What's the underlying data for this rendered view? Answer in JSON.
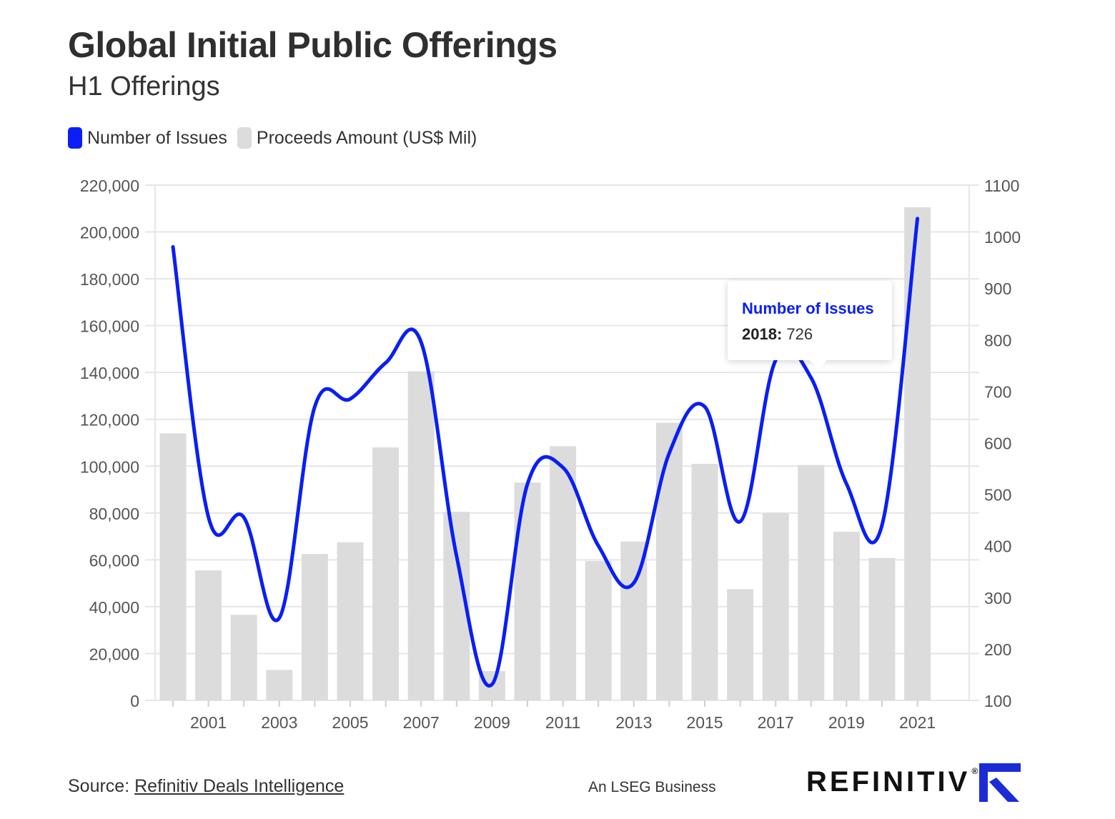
{
  "header": {
    "title": "Global Initial Public Offerings",
    "subtitle": "H1 Offerings"
  },
  "colors": {
    "line": "#0a1ef5",
    "bar": "#dcdcdc",
    "grid": "#e6e6e6",
    "axis_text": "#555555"
  },
  "chart_data": {
    "type": "bar+line",
    "title": "Global Initial Public Offerings",
    "subtitle": "H1 Offerings",
    "legend": [
      "Number of Issues",
      "Proceeds Amount (US$ Mil)"
    ],
    "legend_position": "top-left",
    "x": [
      2000,
      2001,
      2002,
      2003,
      2004,
      2005,
      2006,
      2007,
      2008,
      2009,
      2010,
      2011,
      2012,
      2013,
      2014,
      2015,
      2016,
      2017,
      2018,
      2019,
      2020,
      2021
    ],
    "x_tick_labels": [
      "2001",
      "2003",
      "2005",
      "2007",
      "2009",
      "2011",
      "2013",
      "2015",
      "2017",
      "2019",
      "2021"
    ],
    "series": [
      {
        "name": "Proceeds Amount (US$ Mil)",
        "type": "bar",
        "axis": "left",
        "values": [
          114000,
          55500,
          36500,
          13000,
          62500,
          67500,
          108000,
          140500,
          80500,
          12500,
          93000,
          108500,
          59500,
          67800,
          118500,
          101000,
          47500,
          80000,
          100500,
          72000,
          60800,
          210500
        ]
      },
      {
        "name": "Number of Issues",
        "type": "line",
        "axis": "right",
        "values": [
          980,
          456,
          455,
          260,
          670,
          685,
          755,
          795,
          380,
          131,
          520,
          552,
          400,
          328,
          580,
          670,
          447,
          760,
          726,
          520,
          440,
          1035
        ]
      }
    ],
    "y_left": {
      "min": 0,
      "max": 220000,
      "ticks": [
        "0",
        "20,000",
        "40,000",
        "60,000",
        "80,000",
        "100,000",
        "120,000",
        "140,000",
        "160,000",
        "180,000",
        "200,000",
        "220,000"
      ]
    },
    "y_right": {
      "min": 100,
      "max": 1100,
      "ticks": [
        "100",
        "200",
        "300",
        "400",
        "500",
        "600",
        "700",
        "800",
        "900",
        "1000",
        "1100"
      ]
    },
    "grid": true,
    "tooltip": {
      "series": "Number of Issues",
      "year": "2018",
      "year_label": "2018:",
      "value": "726"
    }
  },
  "footer": {
    "source_label": "Source: ",
    "source_link": "Refinitiv Deals Intelligence",
    "tagline": "An LSEG Business",
    "logo_text": "REFINITIV",
    "logo_reg": "®"
  }
}
